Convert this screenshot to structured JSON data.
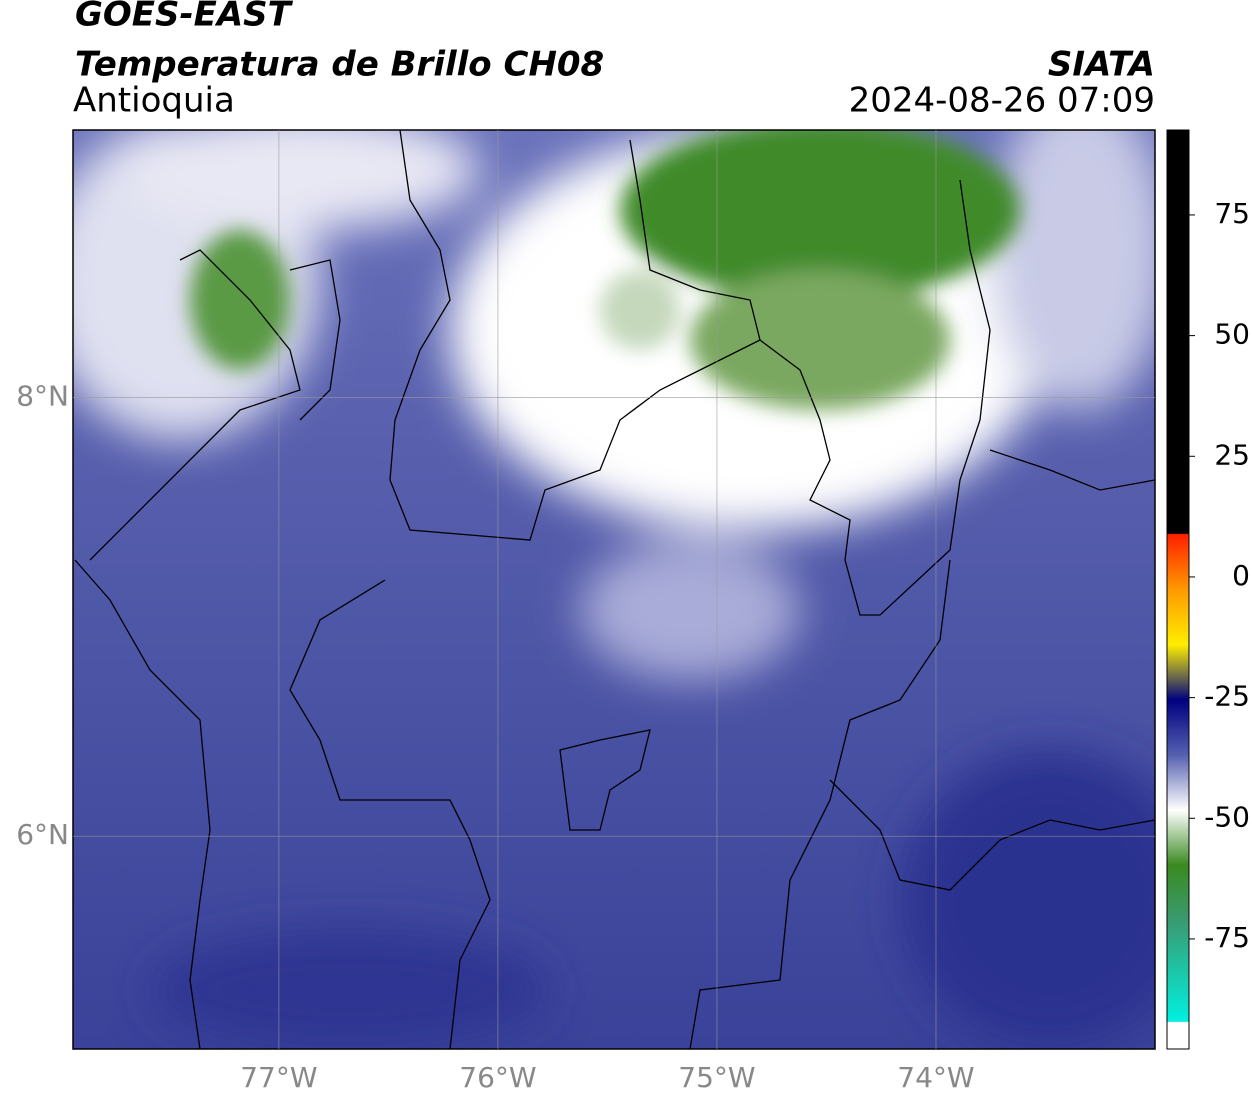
{
  "header": {
    "title": "GOES-EAST",
    "subtitle": "Temperatura de Brillo CH08",
    "region": "Antioquia",
    "source": "SIATA",
    "datetime": "2024-08-26 07:09"
  },
  "map": {
    "xlim": [
      -77.94,
      -73.0
    ],
    "ylim": [
      5.03,
      9.22
    ],
    "xticks": [
      {
        "value": -77,
        "label": "77°W"
      },
      {
        "value": -76,
        "label": "76°W"
      },
      {
        "value": -75,
        "label": "75°W"
      },
      {
        "value": -74,
        "label": "74°W"
      }
    ],
    "yticks": [
      {
        "value": 8,
        "label": "8°N"
      },
      {
        "value": 6,
        "label": "6°N"
      }
    ]
  },
  "colorbar": {
    "lim": [
      -97.8,
      92.6
    ],
    "ticks": [
      75,
      50,
      25,
      0,
      -25,
      -50,
      -75
    ]
  }
}
